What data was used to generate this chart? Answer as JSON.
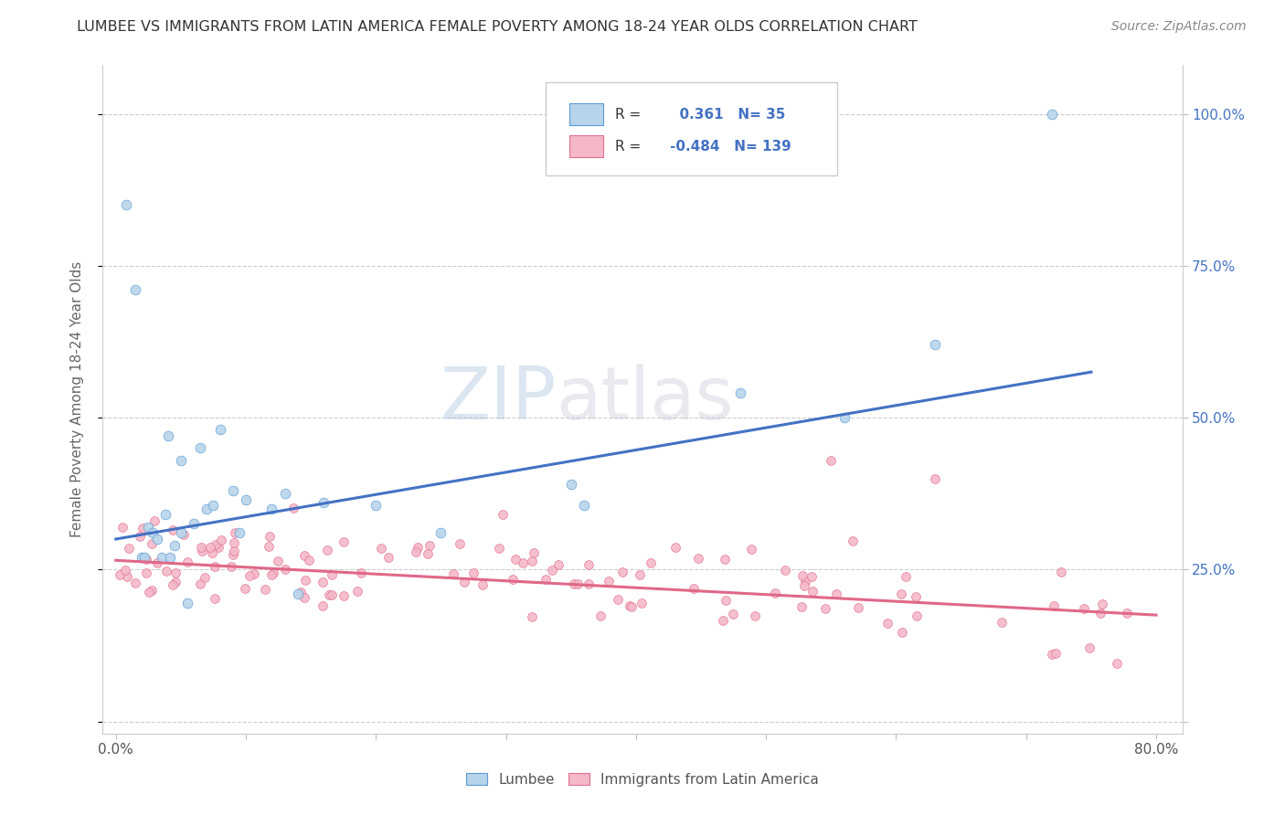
{
  "title": "LUMBEE VS IMMIGRANTS FROM LATIN AMERICA FEMALE POVERTY AMONG 18-24 YEAR OLDS CORRELATION CHART",
  "source": "Source: ZipAtlas.com",
  "ylabel": "Female Poverty Among 18-24 Year Olds",
  "xlim": [
    -0.01,
    0.82
  ],
  "ylim": [
    -0.02,
    1.08
  ],
  "xticks": [
    0.0,
    0.1,
    0.2,
    0.3,
    0.4,
    0.5,
    0.6,
    0.7,
    0.8
  ],
  "xticklabels": [
    "0.0%",
    "",
    "",
    "",
    "",
    "",
    "",
    "",
    "80.0%"
  ],
  "ytick_positions": [
    0.0,
    0.25,
    0.5,
    0.75,
    1.0
  ],
  "ytick_labels_right": [
    "",
    "25.0%",
    "50.0%",
    "75.0%",
    "100.0%"
  ],
  "lumbee_R": 0.361,
  "lumbee_N": 35,
  "latin_R": -0.484,
  "latin_N": 139,
  "color_lumbee_fill": "#b8d4ea",
  "color_lumbee_edge": "#5b9bd5",
  "color_latin_fill": "#f4b8c8",
  "color_latin_edge": "#e07090",
  "color_line_lumbee": "#4472c4",
  "color_line_latin": "#e06888",
  "background_color": "#ffffff",
  "lumbee_trend_x0": 0.0,
  "lumbee_trend_x1": 0.75,
  "lumbee_trend_y0": 0.3,
  "lumbee_trend_y1": 0.575,
  "latin_trend_x0": 0.0,
  "latin_trend_x1": 0.8,
  "latin_trend_y0": 0.265,
  "latin_trend_y1": 0.175
}
